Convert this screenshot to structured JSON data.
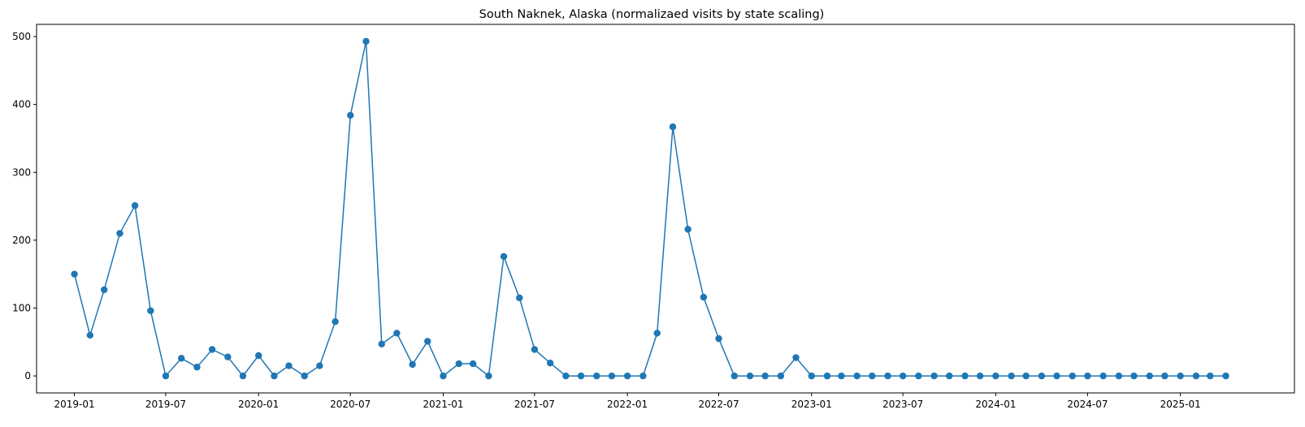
{
  "chart_data": {
    "type": "line",
    "title": "South Naknek, Alaska (normalizaed visits by state scaling)",
    "xlabel": "",
    "ylabel": "",
    "ylim": [
      -25,
      518
    ],
    "xlim": [
      "2018-10-18",
      "2025-08-15"
    ],
    "marker": "circle",
    "grid": false,
    "legend": "none",
    "color": "#1f77b4",
    "x_ticks": [
      "2019-01",
      "2019-07",
      "2020-01",
      "2020-07",
      "2021-01",
      "2021-07",
      "2022-01",
      "2022-07",
      "2023-01",
      "2023-07",
      "2024-01",
      "2024-07",
      "2025-01"
    ],
    "y_ticks": [
      0,
      100,
      200,
      300,
      400,
      500
    ],
    "series": [
      {
        "x": [
          "2019-01",
          "2019-02",
          "2019-03",
          "2019-04",
          "2019-05",
          "2019-06",
          "2019-07",
          "2019-08",
          "2019-09",
          "2019-10",
          "2019-11",
          "2019-12",
          "2020-01",
          "2020-02",
          "2020-03",
          "2020-04",
          "2020-05",
          "2020-06",
          "2020-07",
          "2020-08",
          "2020-09",
          "2020-10",
          "2020-11",
          "2020-12",
          "2021-01",
          "2021-02",
          "2021-03",
          "2021-04",
          "2021-05",
          "2021-06",
          "2021-07",
          "2021-08",
          "2021-09",
          "2021-10",
          "2021-11",
          "2021-12",
          "2022-01",
          "2022-02",
          "2022-03",
          "2022-04",
          "2022-05",
          "2022-06",
          "2022-07",
          "2022-08",
          "2022-09",
          "2022-10",
          "2022-11",
          "2022-12",
          "2023-01",
          "2023-02",
          "2023-03",
          "2023-04",
          "2023-05",
          "2023-06",
          "2023-07",
          "2023-08",
          "2023-09",
          "2023-10",
          "2023-11",
          "2023-12",
          "2024-01",
          "2024-02",
          "2024-03",
          "2024-04",
          "2024-05",
          "2024-06",
          "2024-07",
          "2024-08",
          "2024-09",
          "2024-10",
          "2024-11",
          "2024-12",
          "2025-01",
          "2025-02",
          "2025-03",
          "2025-04"
        ],
        "values": [
          150,
          60,
          127,
          210,
          251,
          96,
          0,
          26,
          13,
          39,
          28,
          0,
          30,
          0,
          15,
          0,
          15,
          80,
          384,
          493,
          47,
          63,
          17,
          51,
          0,
          18,
          18,
          0,
          176,
          115,
          39,
          19,
          0,
          0,
          0,
          0,
          0,
          0,
          63,
          367,
          216,
          116,
          55,
          0,
          0,
          0,
          0,
          27,
          0,
          0,
          0,
          0,
          0,
          0,
          0,
          0,
          0,
          0,
          0,
          0,
          0,
          0,
          0,
          0,
          0,
          0,
          0,
          0,
          0,
          0,
          0,
          0,
          0,
          0,
          0,
          0
        ]
      }
    ]
  }
}
